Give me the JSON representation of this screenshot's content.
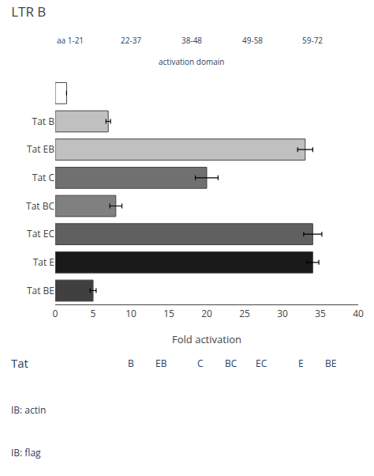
{
  "chart_data": {
    "type": "bar",
    "orientation": "horizontal",
    "title": "LTR B",
    "categories": [
      null,
      "Tat B",
      "Tat EB",
      "Tat C",
      "Tat BC",
      "Tat EC",
      "Tat E",
      "Tat BE"
    ],
    "values": [
      1.5,
      7,
      33,
      20,
      8,
      34,
      34,
      5
    ],
    "errors": [
      null,
      0.3,
      1.0,
      1.5,
      0.8,
      1.2,
      0.8,
      0.4
    ],
    "colors": [
      "#ffffff",
      "#c0c0c0",
      "#c0c0c0",
      "#707070",
      "#808080",
      "#606060",
      "#1a1a1a",
      "#404040"
    ],
    "xlabel": "Fold activation",
    "xlim": [
      0,
      40
    ],
    "xticks": [
      0,
      5,
      10,
      15,
      20,
      25,
      30,
      35,
      40
    ],
    "grid": false,
    "annotations": [
      "aa 1-21",
      "22-37",
      "38-48",
      "49-58",
      "59-72",
      "activation domain",
      "Tat",
      "IB: actin",
      "IB: flag",
      "B",
      "EB",
      "C",
      "BC",
      "EC",
      "E",
      "BE"
    ]
  }
}
